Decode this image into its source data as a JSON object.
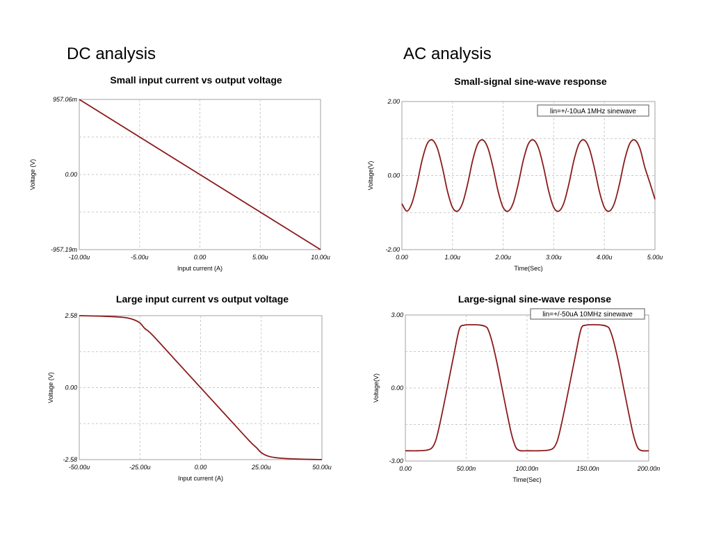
{
  "sections": {
    "dc": "DC analysis",
    "ac": "AC analysis"
  },
  "colors": {
    "trace": "#8b1a1a",
    "grid": "#c8c8c8",
    "frame": "#a0a0a0"
  },
  "chart_data": [
    {
      "type": "line",
      "title": "Small input current vs output voltage",
      "xlabel": "Input current (A)",
      "ylabel": "Voltage (V)",
      "xlim": [
        -10,
        10
      ],
      "ylim": [
        -957.19,
        957.06
      ],
      "x_ticks": [
        "-10.00u",
        "-5.00u",
        "0.00",
        "5.00u",
        "10.00u"
      ],
      "y_ticks": [
        "957.06m",
        "0.00",
        "-957.19m"
      ],
      "grid": true,
      "series": [
        {
          "x": [
            -10,
            10
          ],
          "y": [
            957.06,
            -957.19
          ]
        }
      ]
    },
    {
      "type": "line",
      "title": "Small-signal sine-wave response",
      "xlabel": "Time(Sec)",
      "ylabel": "Voltage(V)",
      "xlim": [
        0,
        5
      ],
      "ylim": [
        -2,
        2
      ],
      "x_ticks": [
        "0.00",
        "1.00u",
        "2.00u",
        "3.00u",
        "4.00u",
        "5.00u"
      ],
      "y_ticks": [
        "2.00",
        "0.00",
        "-2.00"
      ],
      "annotation": "lin=+/-10uA 1MHz sinewave",
      "grid": true,
      "series": [
        {
          "x": [
            0,
            0.1,
            0.2,
            0.3,
            0.4,
            0.5,
            0.6,
            0.7,
            0.8,
            0.9,
            1.0,
            1.1,
            1.2,
            1.3,
            1.4,
            1.5,
            1.6,
            1.7,
            1.8,
            1.9,
            2.0,
            2.1,
            2.2,
            2.3,
            2.4,
            2.5,
            2.6,
            2.7,
            2.8,
            2.9,
            3.0,
            3.1,
            3.2,
            3.3,
            3.4,
            3.5,
            3.6,
            3.7,
            3.8,
            3.9,
            4.0,
            4.1,
            4.2,
            4.3,
            4.4,
            4.5,
            4.6,
            4.7,
            4.8,
            4.9,
            5.0
          ],
          "y": [
            -0.76,
            -0.96,
            -0.74,
            -0.22,
            0.42,
            0.86,
            0.96,
            0.74,
            0.22,
            -0.42,
            -0.86,
            -0.96,
            -0.74,
            -0.22,
            0.42,
            0.86,
            0.96,
            0.74,
            0.22,
            -0.42,
            -0.86,
            -0.96,
            -0.74,
            -0.22,
            0.42,
            0.86,
            0.96,
            0.74,
            0.22,
            -0.42,
            -0.86,
            -0.96,
            -0.74,
            -0.22,
            0.42,
            0.86,
            0.96,
            0.74,
            0.22,
            -0.42,
            -0.86,
            -0.96,
            -0.74,
            -0.22,
            0.42,
            0.86,
            0.96,
            0.74,
            0.22,
            -0.2,
            -0.64
          ]
        }
      ]
    },
    {
      "type": "line",
      "title": "Large input current vs output voltage",
      "xlabel": "Input current (A)",
      "ylabel": "Voltage (V)",
      "xlim": [
        -50,
        50
      ],
      "ylim": [
        -2.58,
        2.58
      ],
      "x_ticks": [
        "-50.00u",
        "-25.00u",
        "0.00",
        "25.00u",
        "50.00u"
      ],
      "y_ticks": [
        "2.58",
        "0.00",
        "-2.58"
      ],
      "grid": true,
      "series": [
        {
          "x": [
            -50,
            -40,
            -32,
            -28,
            -25,
            -23,
            -20,
            -10,
            0,
            10,
            20,
            23,
            25,
            28,
            32,
            40,
            50
          ],
          "y": [
            2.58,
            2.56,
            2.52,
            2.45,
            2.32,
            2.12,
            1.9,
            0.95,
            0.0,
            -0.95,
            -1.9,
            -2.15,
            -2.33,
            -2.46,
            -2.52,
            -2.56,
            -2.58
          ]
        }
      ]
    },
    {
      "type": "line",
      "title": "Large-signal sine-wave response",
      "xlabel": "Time(Sec)",
      "ylabel": "Voltage(V)",
      "xlim": [
        0,
        200
      ],
      "ylim": [
        -3,
        3
      ],
      "x_ticks": [
        "0.00",
        "50.00n",
        "100.00n",
        "150.00n",
        "200.00n"
      ],
      "y_ticks": [
        "3.00",
        "0.00",
        "-3.00"
      ],
      "annotation": "lin=+/-50uA 10MHz sinewave",
      "grid": true,
      "series": [
        {
          "x": [
            0,
            10,
            18,
            22,
            25,
            28,
            32,
            36,
            40,
            43,
            45,
            48,
            55,
            62,
            66,
            68,
            71,
            75,
            79,
            83,
            87,
            90,
            92,
            95,
            100,
            110,
            118,
            122,
            125,
            128,
            132,
            136,
            140,
            143,
            145,
            148,
            155,
            162,
            166,
            168,
            171,
            175,
            179,
            183,
            187,
            190,
            192,
            195,
            200
          ],
          "y": [
            -2.58,
            -2.58,
            -2.55,
            -2.45,
            -2.15,
            -1.55,
            -0.6,
            0.4,
            1.4,
            2.15,
            2.5,
            2.58,
            2.6,
            2.58,
            2.52,
            2.4,
            1.95,
            1.1,
            0.1,
            -0.9,
            -1.85,
            -2.35,
            -2.52,
            -2.58,
            -2.58,
            -2.58,
            -2.55,
            -2.45,
            -2.15,
            -1.55,
            -0.6,
            0.4,
            1.4,
            2.15,
            2.5,
            2.58,
            2.6,
            2.58,
            2.52,
            2.4,
            1.95,
            1.1,
            0.1,
            -0.9,
            -1.85,
            -2.35,
            -2.52,
            -2.58,
            -2.58
          ]
        }
      ]
    }
  ]
}
